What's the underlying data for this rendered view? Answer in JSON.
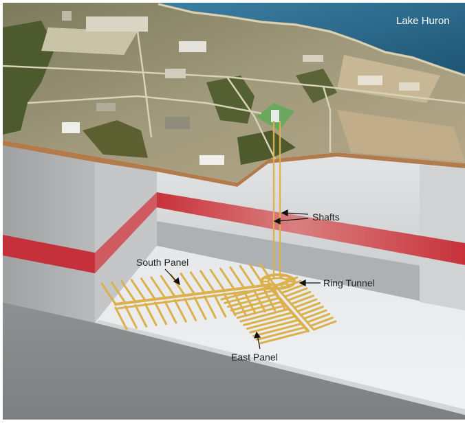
{
  "labels": {
    "lake": "Lake Huron",
    "shafts": "Shafts",
    "ring_tunnel": "Ring Tunnel",
    "south_panel": "South Panel",
    "east_panel": "East Panel"
  },
  "colors": {
    "lake_water": "#2e6a8e",
    "site_ground": "#8f8a6c",
    "forest": "#4d5a2e",
    "surface_edge": "#b07a48",
    "rock_face_left": "#aeb0b1",
    "rock_face_back": "#d4d6d8",
    "pit_floor": "#eceeef",
    "red_layer": "#c9333b",
    "tunnels": "#dcb04a",
    "grid_lines": "#777777"
  }
}
